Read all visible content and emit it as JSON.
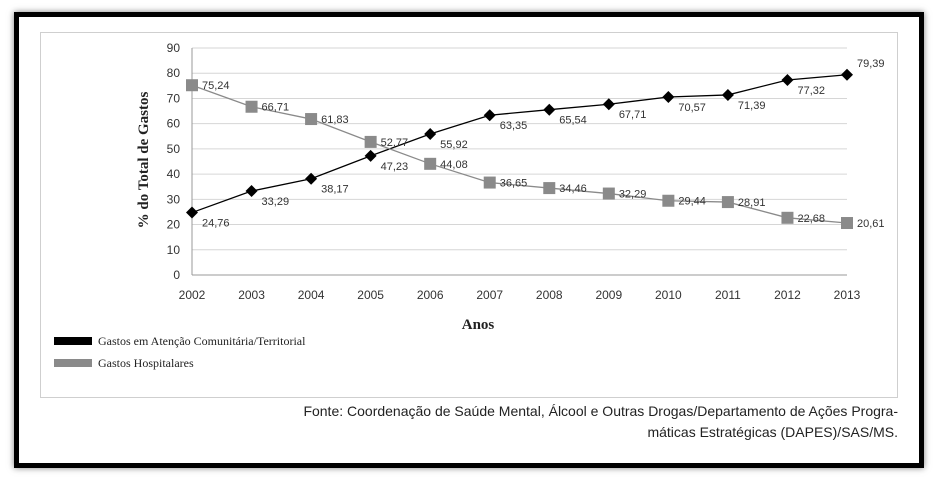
{
  "chart_data": {
    "type": "line",
    "categories": [
      "2002",
      "2003",
      "2004",
      "2005",
      "2006",
      "2007",
      "2008",
      "2009",
      "2010",
      "2011",
      "2012",
      "2013"
    ],
    "series": [
      {
        "name": "Gastos em Atenção Comunitária/Territorial",
        "color": "#000000",
        "marker": "diamond",
        "values": [
          24.76,
          33.29,
          38.17,
          47.23,
          55.92,
          63.35,
          65.54,
          67.71,
          70.57,
          71.39,
          77.32,
          79.39
        ],
        "labels": [
          "24,76",
          "33,29",
          "38,17",
          "47,23",
          "55,92",
          "63,35",
          "65,54",
          "67,71",
          "70,57",
          "71,39",
          "77,32",
          "79,39"
        ]
      },
      {
        "name": "Gastos Hospitalares",
        "color": "#8a8a8a",
        "marker": "square",
        "values": [
          75.24,
          66.71,
          61.83,
          52.77,
          44.08,
          36.65,
          34.46,
          32.29,
          29.44,
          28.91,
          22.68,
          20.61
        ],
        "labels": [
          "75,24",
          "66,71",
          "61,83",
          "52,77",
          "44,08",
          "36,65",
          "34,46",
          "32,29",
          "29,44",
          "28,91",
          "22,68",
          "20,61"
        ]
      }
    ],
    "xlabel": "Anos",
    "ylabel": "% do Total de Gastos",
    "ylim": [
      0,
      90
    ],
    "yticks": [
      0,
      10,
      20,
      30,
      40,
      50,
      60,
      70,
      80,
      90
    ],
    "grid": true,
    "legend_position": "bottom-left"
  },
  "source": {
    "line1": "Fonte: Coordenação de Saúde Mental, Álcool e Outras Drogas/Departamento de Ações Progra-",
    "line2": "máticas Estratégicas (DAPES)/SAS/MS."
  }
}
